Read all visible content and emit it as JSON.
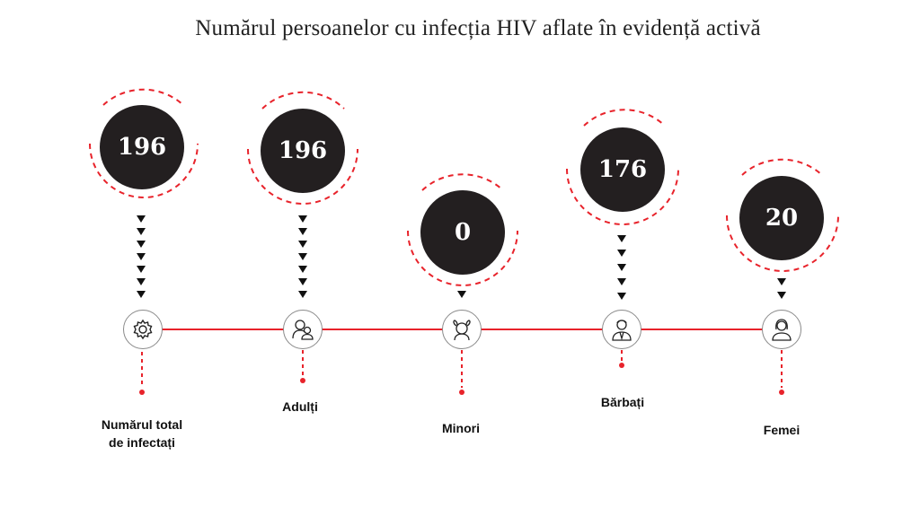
{
  "title": "Numărul persoanelor cu infecția HIV aflate în evidență activă",
  "colors": {
    "accent": "#e8232b",
    "dark": "#231f20"
  },
  "items": [
    {
      "value": "196",
      "label_lines": [
        "Numărul total",
        "de infectați"
      ],
      "icon": "gear-icon"
    },
    {
      "value": "196",
      "label_lines": [
        "Adulți"
      ],
      "icon": "adults-icon"
    },
    {
      "value": "0",
      "label_lines": [
        "Minori"
      ],
      "icon": "girl-icon"
    },
    {
      "value": "176",
      "label_lines": [
        "Bărbați"
      ],
      "icon": "man-icon"
    },
    {
      "value": "20",
      "label_lines": [
        "Femei"
      ],
      "icon": "woman-icon"
    }
  ]
}
